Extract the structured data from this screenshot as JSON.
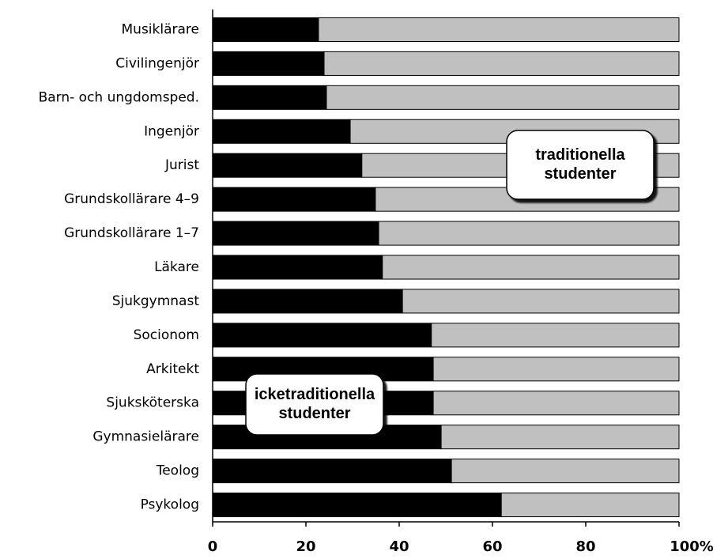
{
  "chart_data": {
    "type": "stacked-barh",
    "categories": [
      "Musiklärare",
      "Civilingenjör",
      "Barn- och ungdomsped.",
      "Ingenjör",
      "Jurist",
      "Grundskollärare 4–9",
      "Grundskollärare 1–7",
      "Läkare",
      "Sjukgymnast",
      "Socionom",
      "Arkitekt",
      "Sjuksköterska",
      "Gymnasielärare",
      "Teolog",
      "Psykolog"
    ],
    "series": [
      {
        "color": "#000000",
        "values": [
          22.7,
          23.9,
          24.4,
          29.5,
          32.0,
          34.9,
          35.6,
          36.4,
          40.7,
          46.9,
          47.3,
          47.3,
          49.0,
          51.2,
          61.9
        ]
      },
      {
        "color": "#c0c0c0",
        "values": [
          77.3,
          76.1,
          75.6,
          70.5,
          68.0,
          65.1,
          64.4,
          63.6,
          59.3,
          53.1,
          52.7,
          52.7,
          51.0,
          48.8,
          38.1
        ]
      }
    ],
    "xlim": [
      0,
      100
    ],
    "xticks": [
      0,
      20,
      40,
      60,
      80,
      {
        "value": 100,
        "label": "100%"
      }
    ],
    "annotations": [
      {
        "lines": [
          "traditionella",
          "studenter"
        ]
      },
      {
        "lines": [
          "icketraditionella",
          "studenter"
        ]
      }
    ]
  }
}
